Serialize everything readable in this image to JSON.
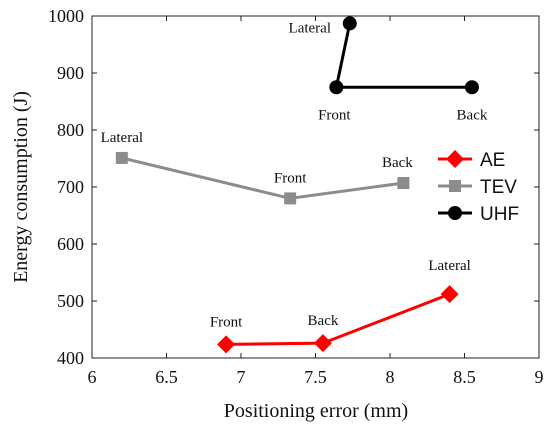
{
  "chart_data": {
    "type": "line",
    "xlabel": "Positioning error (mm)",
    "ylabel": "Energy  consumption (J)",
    "xlim": [
      6,
      9
    ],
    "ylim": [
      400,
      1000
    ],
    "xticks": [
      6,
      6.5,
      7,
      7.5,
      8,
      8.5,
      9
    ],
    "yticks": [
      400,
      500,
      600,
      700,
      800,
      900,
      1000
    ],
    "xtick_labels": [
      "6",
      "6.5",
      "7",
      "7.5",
      "8",
      "8.5",
      "9"
    ],
    "ytick_labels": [
      "400",
      "500",
      "600",
      "700",
      "800",
      "900",
      "1000"
    ],
    "grid": false,
    "legend_position": "right",
    "series": [
      {
        "name": "AE",
        "color": "#ff0000",
        "marker": "diamond",
        "points": [
          {
            "x": 6.9,
            "y": 424,
            "label": "Front"
          },
          {
            "x": 7.55,
            "y": 426,
            "label": "Back"
          },
          {
            "x": 8.4,
            "y": 512,
            "label": "Lateral"
          }
        ]
      },
      {
        "name": "TEV",
        "color": "#8c8c8c",
        "marker": "square",
        "points": [
          {
            "x": 6.2,
            "y": 751,
            "label": "Lateral"
          },
          {
            "x": 7.33,
            "y": 680,
            "label": "Front"
          },
          {
            "x": 8.09,
            "y": 707,
            "label": "Back"
          }
        ]
      },
      {
        "name": "UHF",
        "color": "#000000",
        "marker": "circle",
        "points": [
          {
            "x": 7.73,
            "y": 987,
            "label": "Lateral"
          },
          {
            "x": 7.64,
            "y": 875,
            "label": "Front"
          },
          {
            "x": 8.55,
            "y": 875,
            "label": "Back"
          }
        ]
      }
    ]
  }
}
